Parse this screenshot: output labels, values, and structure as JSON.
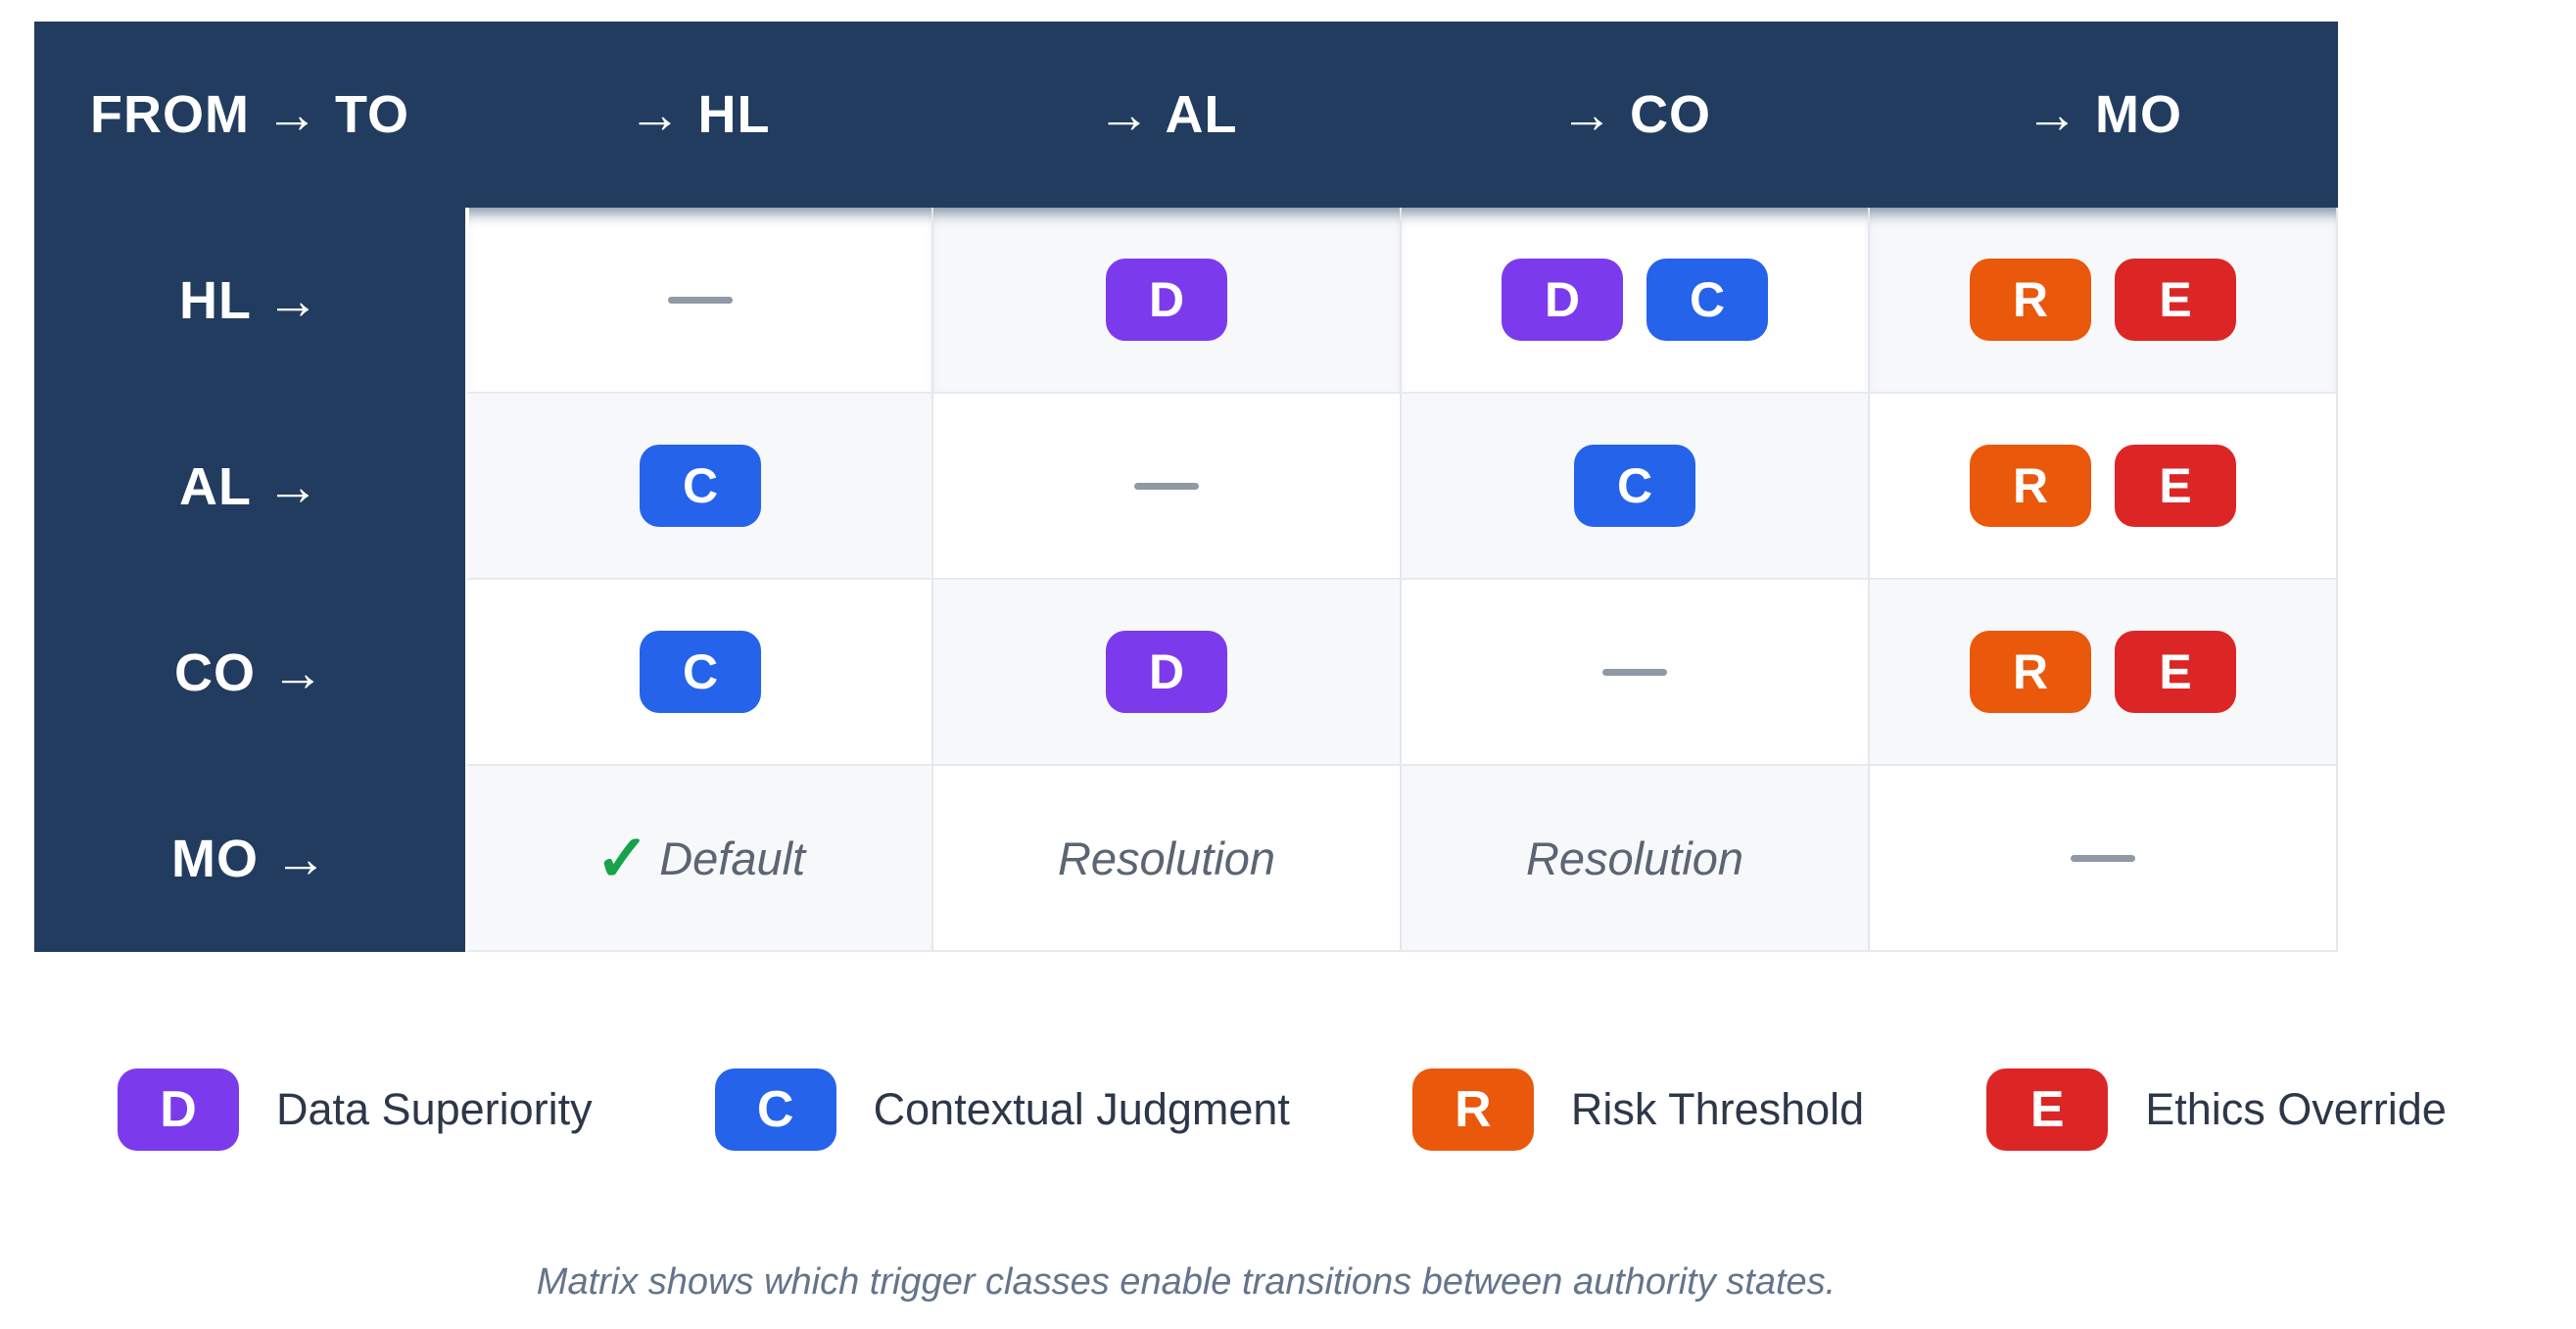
{
  "colors": {
    "navy": "#213c5e",
    "cell_white": "#ffffff",
    "cell_gray": "#f7f8fa",
    "grid_border": "#e4e7ec",
    "dash": "#8f98a4",
    "check_green": "#16a34a",
    "cell_text": "#5b6573",
    "legend_text": "#2d3748",
    "caption_text": "#64748b",
    "badge": {
      "D": "#7c3aed",
      "C": "#2563eb",
      "R": "#ea580c",
      "E": "#dc2626"
    }
  },
  "matrix": {
    "corner_label": "FROM → TO",
    "col_headers": [
      "→ HL",
      "→ AL",
      "→ CO",
      "→ MO"
    ],
    "col_keys": [
      "hl",
      "al",
      "co",
      "mo"
    ],
    "rows": [
      {
        "label": "HL →",
        "key": "hl",
        "cells": [
          {
            "type": "dash",
            "icon": "dash-icon"
          },
          {
            "type": "badges",
            "badges": [
              "D"
            ]
          },
          {
            "type": "badges",
            "badges": [
              "D",
              "C"
            ]
          },
          {
            "type": "badges",
            "badges": [
              "R",
              "E"
            ]
          }
        ]
      },
      {
        "label": "AL →",
        "key": "al",
        "cells": [
          {
            "type": "badges",
            "badges": [
              "C"
            ]
          },
          {
            "type": "dash",
            "icon": "dash-icon"
          },
          {
            "type": "badges",
            "badges": [
              "C"
            ]
          },
          {
            "type": "badges",
            "badges": [
              "R",
              "E"
            ]
          }
        ]
      },
      {
        "label": "CO →",
        "key": "co",
        "cells": [
          {
            "type": "badges",
            "badges": [
              "C"
            ]
          },
          {
            "type": "badges",
            "badges": [
              "D"
            ]
          },
          {
            "type": "dash",
            "icon": "dash-icon"
          },
          {
            "type": "badges",
            "badges": [
              "R",
              "E"
            ]
          }
        ]
      },
      {
        "label": "MO →",
        "key": "mo",
        "cells": [
          {
            "type": "check-text",
            "icon": "check-icon",
            "icon_glyph": "✓",
            "text": "Default"
          },
          {
            "type": "text",
            "text": "Resolution"
          },
          {
            "type": "text",
            "text": "Resolution"
          },
          {
            "type": "dash",
            "icon": "dash-icon"
          }
        ]
      }
    ]
  },
  "legend": {
    "items": [
      {
        "letter": "D",
        "label": "Data Superiority"
      },
      {
        "letter": "C",
        "label": "Contextual Judgment"
      },
      {
        "letter": "R",
        "label": "Risk Threshold"
      },
      {
        "letter": "E",
        "label": "Ethics Override"
      }
    ]
  },
  "caption": "Matrix shows which trigger classes enable transitions between authority states."
}
